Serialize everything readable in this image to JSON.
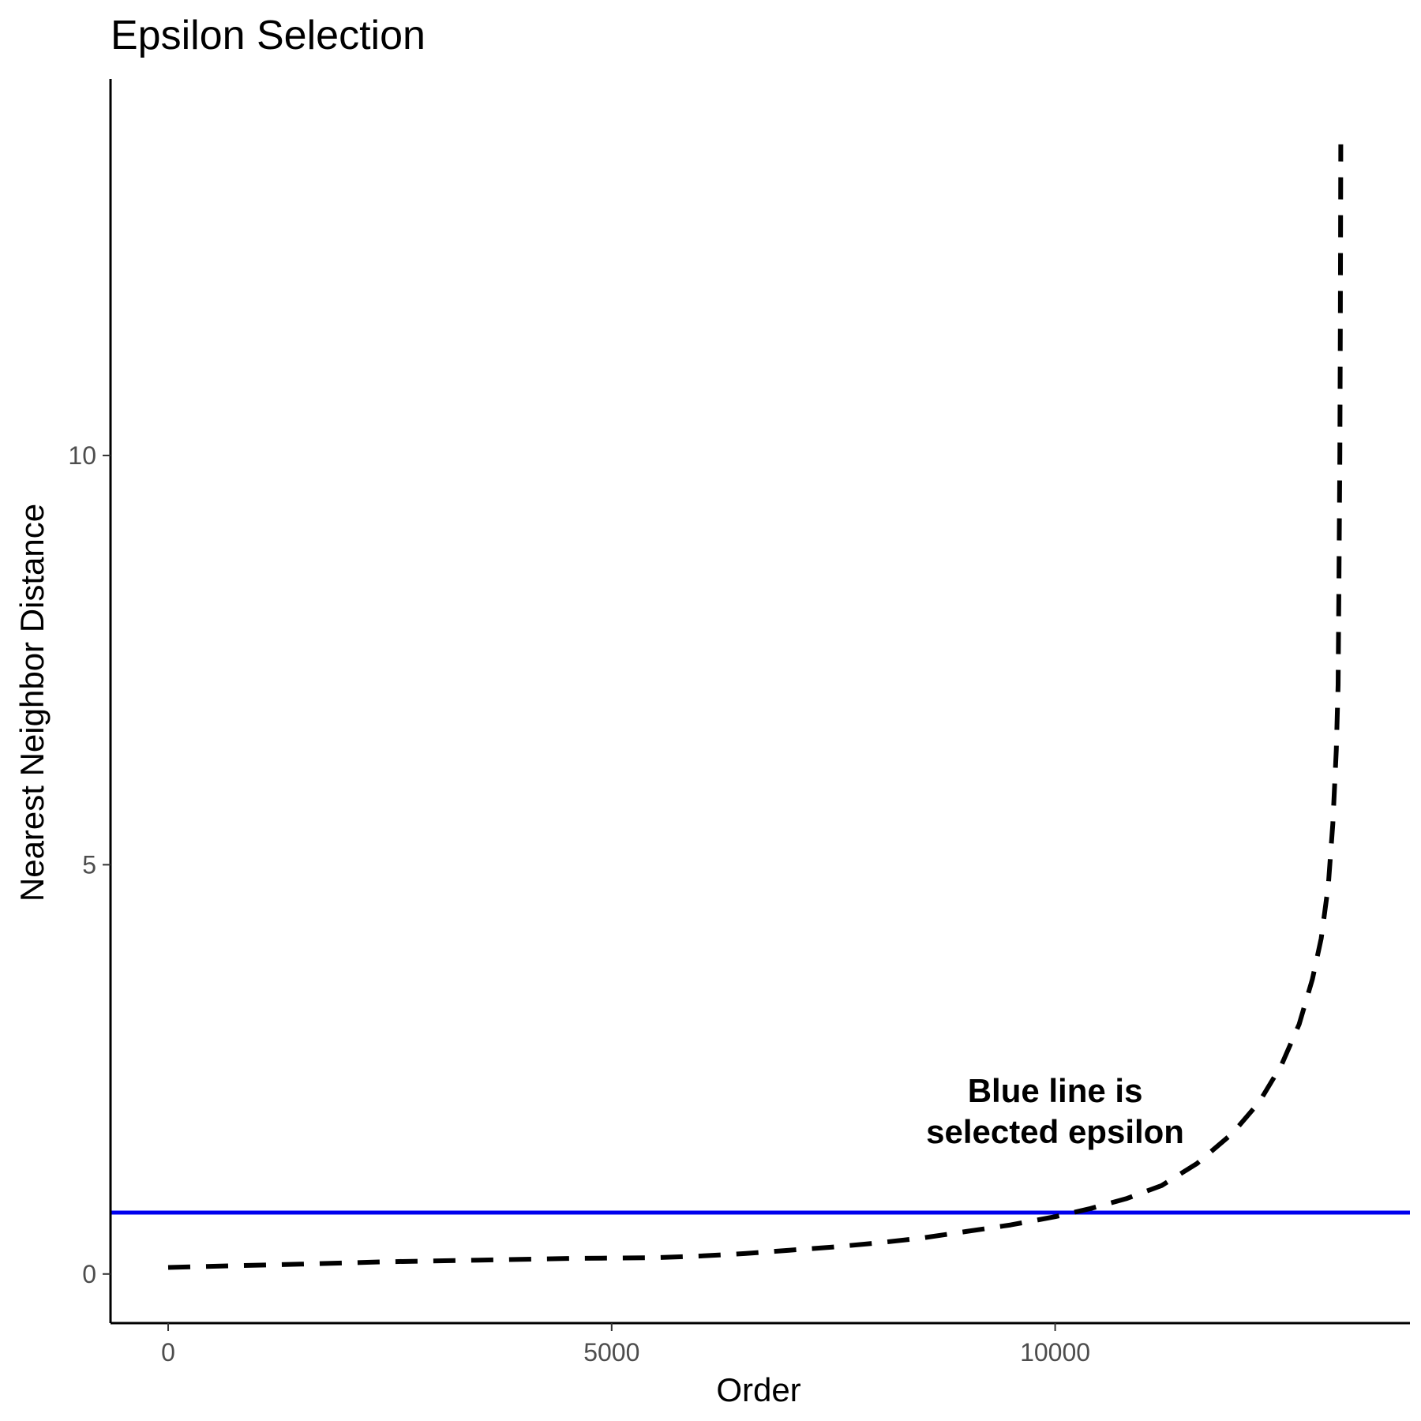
{
  "chart_data": {
    "type": "line",
    "title": "Epsilon Selection",
    "xlabel": "Order",
    "ylabel": "Nearest Neighbor Distance",
    "xlim": [
      -650,
      14000
    ],
    "ylim": [
      -0.6,
      14.6
    ],
    "x_ticks": [
      0,
      5000,
      10000
    ],
    "y_ticks": [
      0,
      5,
      10
    ],
    "grid": false,
    "series": [
      {
        "style": "dashed",
        "color": "#000000",
        "points": [
          [
            0,
            0.08
          ],
          [
            700,
            0.1
          ],
          [
            1500,
            0.12
          ],
          [
            2500,
            0.15
          ],
          [
            3500,
            0.17
          ],
          [
            4500,
            0.19
          ],
          [
            5500,
            0.2
          ],
          [
            6000,
            0.22
          ],
          [
            6500,
            0.25
          ],
          [
            7000,
            0.29
          ],
          [
            7500,
            0.33
          ],
          [
            8000,
            0.38
          ],
          [
            8500,
            0.44
          ],
          [
            9000,
            0.52
          ],
          [
            9500,
            0.6
          ],
          [
            10000,
            0.7
          ],
          [
            10400,
            0.8
          ],
          [
            10800,
            0.92
          ],
          [
            11200,
            1.08
          ],
          [
            11600,
            1.35
          ],
          [
            12000,
            1.72
          ],
          [
            12300,
            2.1
          ],
          [
            12550,
            2.55
          ],
          [
            12750,
            3.05
          ],
          [
            12900,
            3.6
          ],
          [
            13000,
            4.1
          ],
          [
            13080,
            4.75
          ],
          [
            13130,
            5.5
          ],
          [
            13170,
            6.4
          ],
          [
            13190,
            7.2
          ],
          [
            13200,
            8.5
          ],
          [
            13210,
            10.0
          ],
          [
            13215,
            11.5
          ],
          [
            13220,
            13.8
          ]
        ]
      }
    ],
    "hline": {
      "y": 0.75,
      "color": "#0000ee"
    },
    "annotation": {
      "lines": [
        "Blue line is",
        "selected epsilon"
      ],
      "x": 10000,
      "y": 2.1
    }
  }
}
